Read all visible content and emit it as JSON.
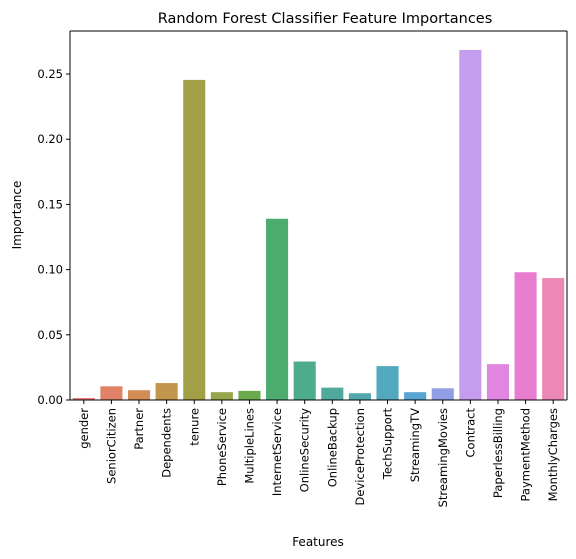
{
  "chart_data": {
    "type": "bar",
    "title": "Random Forest Classifier Feature Importances",
    "xlabel": "Features",
    "ylabel": "Importance",
    "ylim": [
      0,
      0.283
    ],
    "yticks": [
      0.0,
      0.05,
      0.1,
      0.15,
      0.2,
      0.25
    ],
    "ytick_labels": [
      "0.00",
      "0.05",
      "0.10",
      "0.15",
      "0.20",
      "0.25"
    ],
    "grid": false,
    "categories": [
      "gender",
      "SeniorCitizen",
      "Partner",
      "Dependents",
      "tenure",
      "PhoneService",
      "MultipleLines",
      "InternetService",
      "OnlineSecurity",
      "OnlineBackup",
      "DeviceProtection",
      "TechSupport",
      "StreamingTV",
      "StreamingMovies",
      "Contract",
      "PaperlessBilling",
      "PaymentMethod",
      "MonthlyCharges"
    ],
    "values": [
      0.0015,
      0.0105,
      0.0075,
      0.013,
      0.2455,
      0.006,
      0.007,
      0.139,
      0.0295,
      0.0095,
      0.0052,
      0.026,
      0.006,
      0.009,
      0.2685,
      0.0275,
      0.098,
      0.0935
    ],
    "colors": [
      "#e8747c",
      "#e18368",
      "#d38d54",
      "#c3964e",
      "#a2a047",
      "#97a64a",
      "#6aaa4d",
      "#4cac6e",
      "#4eab8b",
      "#4faa9c",
      "#50a8aa",
      "#52a8bd",
      "#5aa4d2",
      "#919ee6",
      "#c49dee",
      "#e186e0",
      "#e87dcf",
      "#eb89b4"
    ]
  }
}
